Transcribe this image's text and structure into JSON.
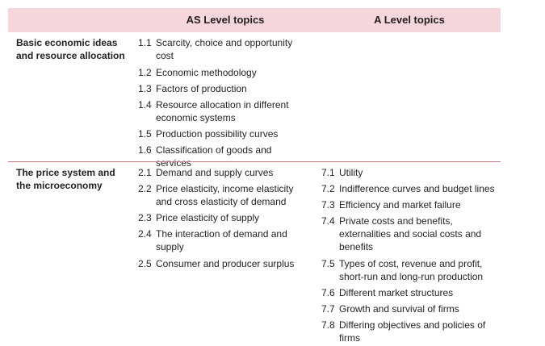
{
  "table": {
    "header": {
      "as_level": "AS Level topics",
      "a_level": "A Level topics"
    },
    "sections": [
      {
        "title_line1": "Basic economic ideas",
        "title_line2": "and resource allocation",
        "as_topics": [
          {
            "num": "1.1",
            "line1": "Scarcity, choice and opportunity",
            "line2": "cost"
          },
          {
            "num": "1.2",
            "line1": "Economic methodology"
          },
          {
            "num": "1.3",
            "line1": "Factors of production"
          },
          {
            "num": "1.4",
            "line1": "Resource allocation in different",
            "line2": "economic systems"
          },
          {
            "num": "1.5",
            "line1": "Production possibility curves"
          },
          {
            "num": "1.6",
            "line1": "Classification of goods and services"
          }
        ],
        "a_topics": []
      },
      {
        "title_line1": "The price system and",
        "title_line2": "the microeconomy",
        "as_topics": [
          {
            "num": "2.1",
            "line1": "Demand and supply curves"
          },
          {
            "num": "2.2",
            "line1": "Price elasticity, income elasticity",
            "line2": "and cross elasticity of demand"
          },
          {
            "num": "2.3",
            "line1": "Price elasticity of supply"
          },
          {
            "num": "2.4",
            "line1": "The interaction of demand and",
            "line2": "supply"
          },
          {
            "num": "2.5",
            "line1": "Consumer and producer surplus"
          }
        ],
        "a_topics": [
          {
            "num": "7.1",
            "line1": "Utility"
          },
          {
            "num": "7.2",
            "line1": "Indifference curves and budget lines"
          },
          {
            "num": "7.3",
            "line1": "Efficiency and market failure"
          },
          {
            "num": "7.4",
            "line1": "Private costs and benefits,",
            "line2": "externalities and social costs and",
            "line3": "benefits"
          },
          {
            "num": "7.5",
            "line1": "Types of cost, revenue and profit,",
            "line2": "short-run and long-run production"
          },
          {
            "num": "7.6",
            "line1": "Different market structures"
          },
          {
            "num": "7.7",
            "line1": "Growth and survival of firms"
          },
          {
            "num": "7.8",
            "line1": "Differing objectives and policies of",
            "line2": "firms"
          }
        ]
      }
    ]
  },
  "colors": {
    "header_band": "#f5d6da",
    "rule": "#c97e87",
    "text": "#231f20"
  }
}
